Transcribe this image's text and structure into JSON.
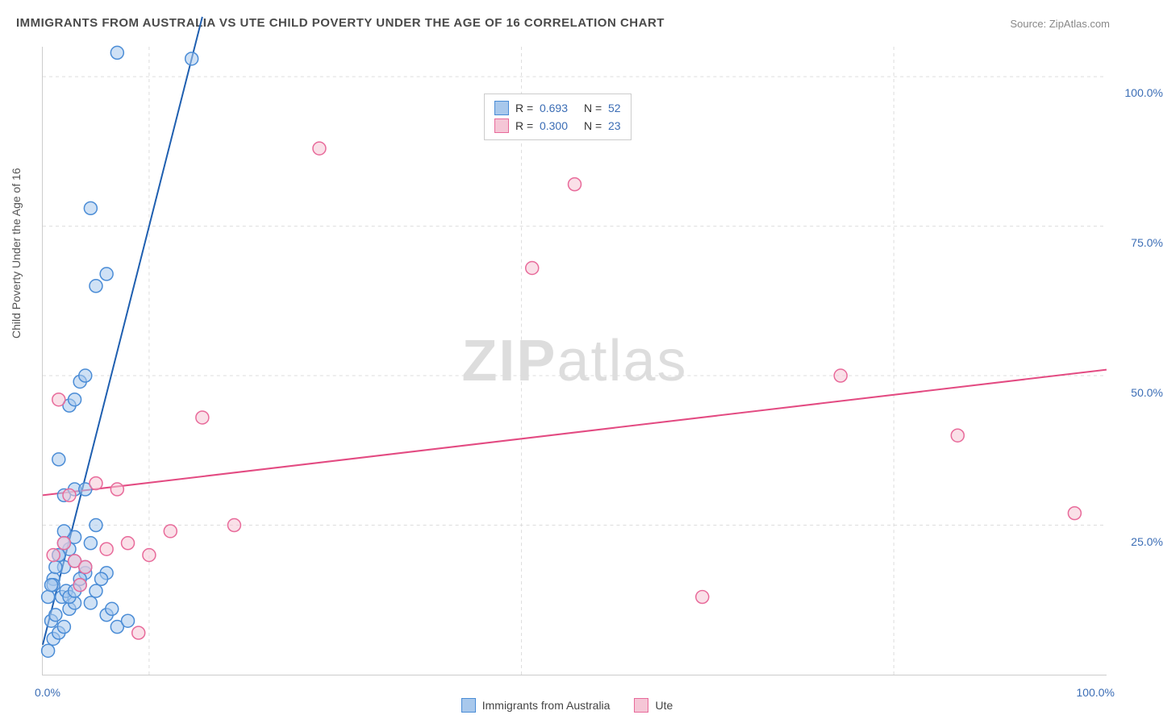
{
  "title": "IMMIGRANTS FROM AUSTRALIA VS UTE CHILD POVERTY UNDER THE AGE OF 16 CORRELATION CHART",
  "source_label": "Source: ZipAtlas.com",
  "y_axis_label": "Child Poverty Under the Age of 16",
  "watermark_bold": "ZIP",
  "watermark_rest": "atlas",
  "chart": {
    "type": "scatter",
    "background_color": "#ffffff",
    "grid_color": "#dddddd",
    "axis_color": "#cccccc",
    "tick_color": "#3b6db5",
    "xlim": [
      0,
      100
    ],
    "ylim": [
      0,
      105
    ],
    "x_ticks": [
      0,
      100
    ],
    "x_tick_labels": [
      "0.0%",
      "100.0%"
    ],
    "y_ticks": [
      25,
      50,
      75,
      100
    ],
    "y_tick_labels": [
      "25.0%",
      "50.0%",
      "75.0%",
      "100.0%"
    ],
    "x_grid_positions": [
      10,
      45,
      80
    ],
    "marker_radius": 8,
    "marker_stroke_width": 1.5,
    "line_width": 2,
    "series": [
      {
        "name": "Immigrants from Australia",
        "fill_color": "#a8c8ec",
        "stroke_color": "#4a8cd6",
        "line_color": "#1f5fb0",
        "R": "0.693",
        "N": "52",
        "trend": {
          "x1": 0,
          "y1": 5,
          "x2": 15,
          "y2": 110
        },
        "points": [
          [
            0.5,
            4
          ],
          [
            1,
            6
          ],
          [
            1.5,
            7
          ],
          [
            2,
            8
          ],
          [
            0.8,
            9
          ],
          [
            1.2,
            10
          ],
          [
            2.5,
            11
          ],
          [
            3,
            12
          ],
          [
            1.8,
            13
          ],
          [
            2.2,
            14
          ],
          [
            3.5,
            15
          ],
          [
            1,
            16
          ],
          [
            4,
            17
          ],
          [
            2,
            18
          ],
          [
            3,
            19
          ],
          [
            1.5,
            20
          ],
          [
            2.5,
            21
          ],
          [
            4.5,
            22
          ],
          [
            3,
            23
          ],
          [
            2,
            24
          ],
          [
            5,
            25
          ],
          [
            1,
            15
          ],
          [
            6,
            17
          ],
          [
            7,
            8
          ],
          [
            8,
            9
          ],
          [
            2,
            30
          ],
          [
            3,
            31
          ],
          [
            1.5,
            36
          ],
          [
            4,
            31
          ],
          [
            2.5,
            45
          ],
          [
            3,
            46
          ],
          [
            3.5,
            49
          ],
          [
            4,
            50
          ],
          [
            5,
            65
          ],
          [
            6,
            67
          ],
          [
            4.5,
            78
          ],
          [
            7,
            104
          ],
          [
            14,
            103
          ],
          [
            0.5,
            13
          ],
          [
            0.8,
            15
          ],
          [
            1.2,
            18
          ],
          [
            1.5,
            20
          ],
          [
            2,
            22
          ],
          [
            2.5,
            13
          ],
          [
            3,
            14
          ],
          [
            3.5,
            16
          ],
          [
            4,
            18
          ],
          [
            4.5,
            12
          ],
          [
            5,
            14
          ],
          [
            5.5,
            16
          ],
          [
            6,
            10
          ],
          [
            6.5,
            11
          ]
        ]
      },
      {
        "name": "Ute",
        "fill_color": "#f5c6d6",
        "stroke_color": "#e86a9a",
        "line_color": "#e34b82",
        "R": "0.300",
        "N": "23",
        "trend": {
          "x1": 0,
          "y1": 30,
          "x2": 100,
          "y2": 51
        },
        "points": [
          [
            1,
            20
          ],
          [
            2,
            22
          ],
          [
            3,
            19
          ],
          [
            1.5,
            46
          ],
          [
            5,
            32
          ],
          [
            6,
            21
          ],
          [
            8,
            22
          ],
          [
            9,
            7
          ],
          [
            12,
            24
          ],
          [
            15,
            43
          ],
          [
            18,
            25
          ],
          [
            26,
            88
          ],
          [
            46,
            68
          ],
          [
            50,
            82
          ],
          [
            62,
            13
          ],
          [
            75,
            50
          ],
          [
            86,
            40
          ],
          [
            97,
            27
          ],
          [
            2.5,
            30
          ],
          [
            4,
            18
          ],
          [
            3.5,
            15
          ],
          [
            7,
            31
          ],
          [
            10,
            20
          ]
        ]
      }
    ]
  },
  "legend_bottom": [
    {
      "label": "Immigrants from Australia",
      "fill": "#a8c8ec",
      "stroke": "#4a8cd6"
    },
    {
      "label": "Ute",
      "fill": "#f5c6d6",
      "stroke": "#e86a9a"
    }
  ]
}
